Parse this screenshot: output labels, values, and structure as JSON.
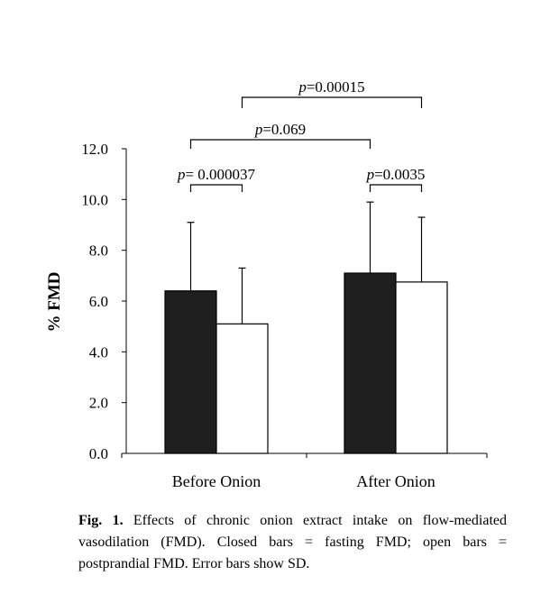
{
  "chart_data": {
    "type": "bar",
    "title": "",
    "xlabel": "",
    "ylabel": "% FMD",
    "ylim": [
      0,
      12
    ],
    "yticks": [
      "0.0",
      "2.0",
      "4.0",
      "6.0",
      "8.0",
      "10.0",
      "12.0"
    ],
    "categories": [
      "Before Onion",
      "After Onion"
    ],
    "series": [
      {
        "values": [
          6.4,
          7.1
        ],
        "sd": [
          2.7,
          2.8
        ],
        "fill": "#1f1f1f"
      },
      {
        "values": [
          5.1,
          6.75
        ],
        "sd": [
          2.2,
          2.55
        ],
        "fill": "#ffffff"
      }
    ],
    "annotations": [
      {
        "label": "p= 0.000037",
        "compares": "Before Onion: fasting vs postprandial"
      },
      {
        "label": "p=0.0035",
        "compares": "After Onion: fasting vs postprandial"
      },
      {
        "label": "p=0.069",
        "compares": "Before Onion fasting vs After Onion fasting"
      },
      {
        "label": "p=0.00015",
        "compares": "Before Onion postprandial vs After Onion postprandial"
      }
    ],
    "grid": false,
    "legend": "none"
  },
  "caption": {
    "lead": "Fig. 1.",
    "text": " Effects of chronic onion extract intake on flow-mediated vasodilation (FMD). Closed bars = fasting FMD; open bars = postprandial FMD. Error bars show SD."
  }
}
